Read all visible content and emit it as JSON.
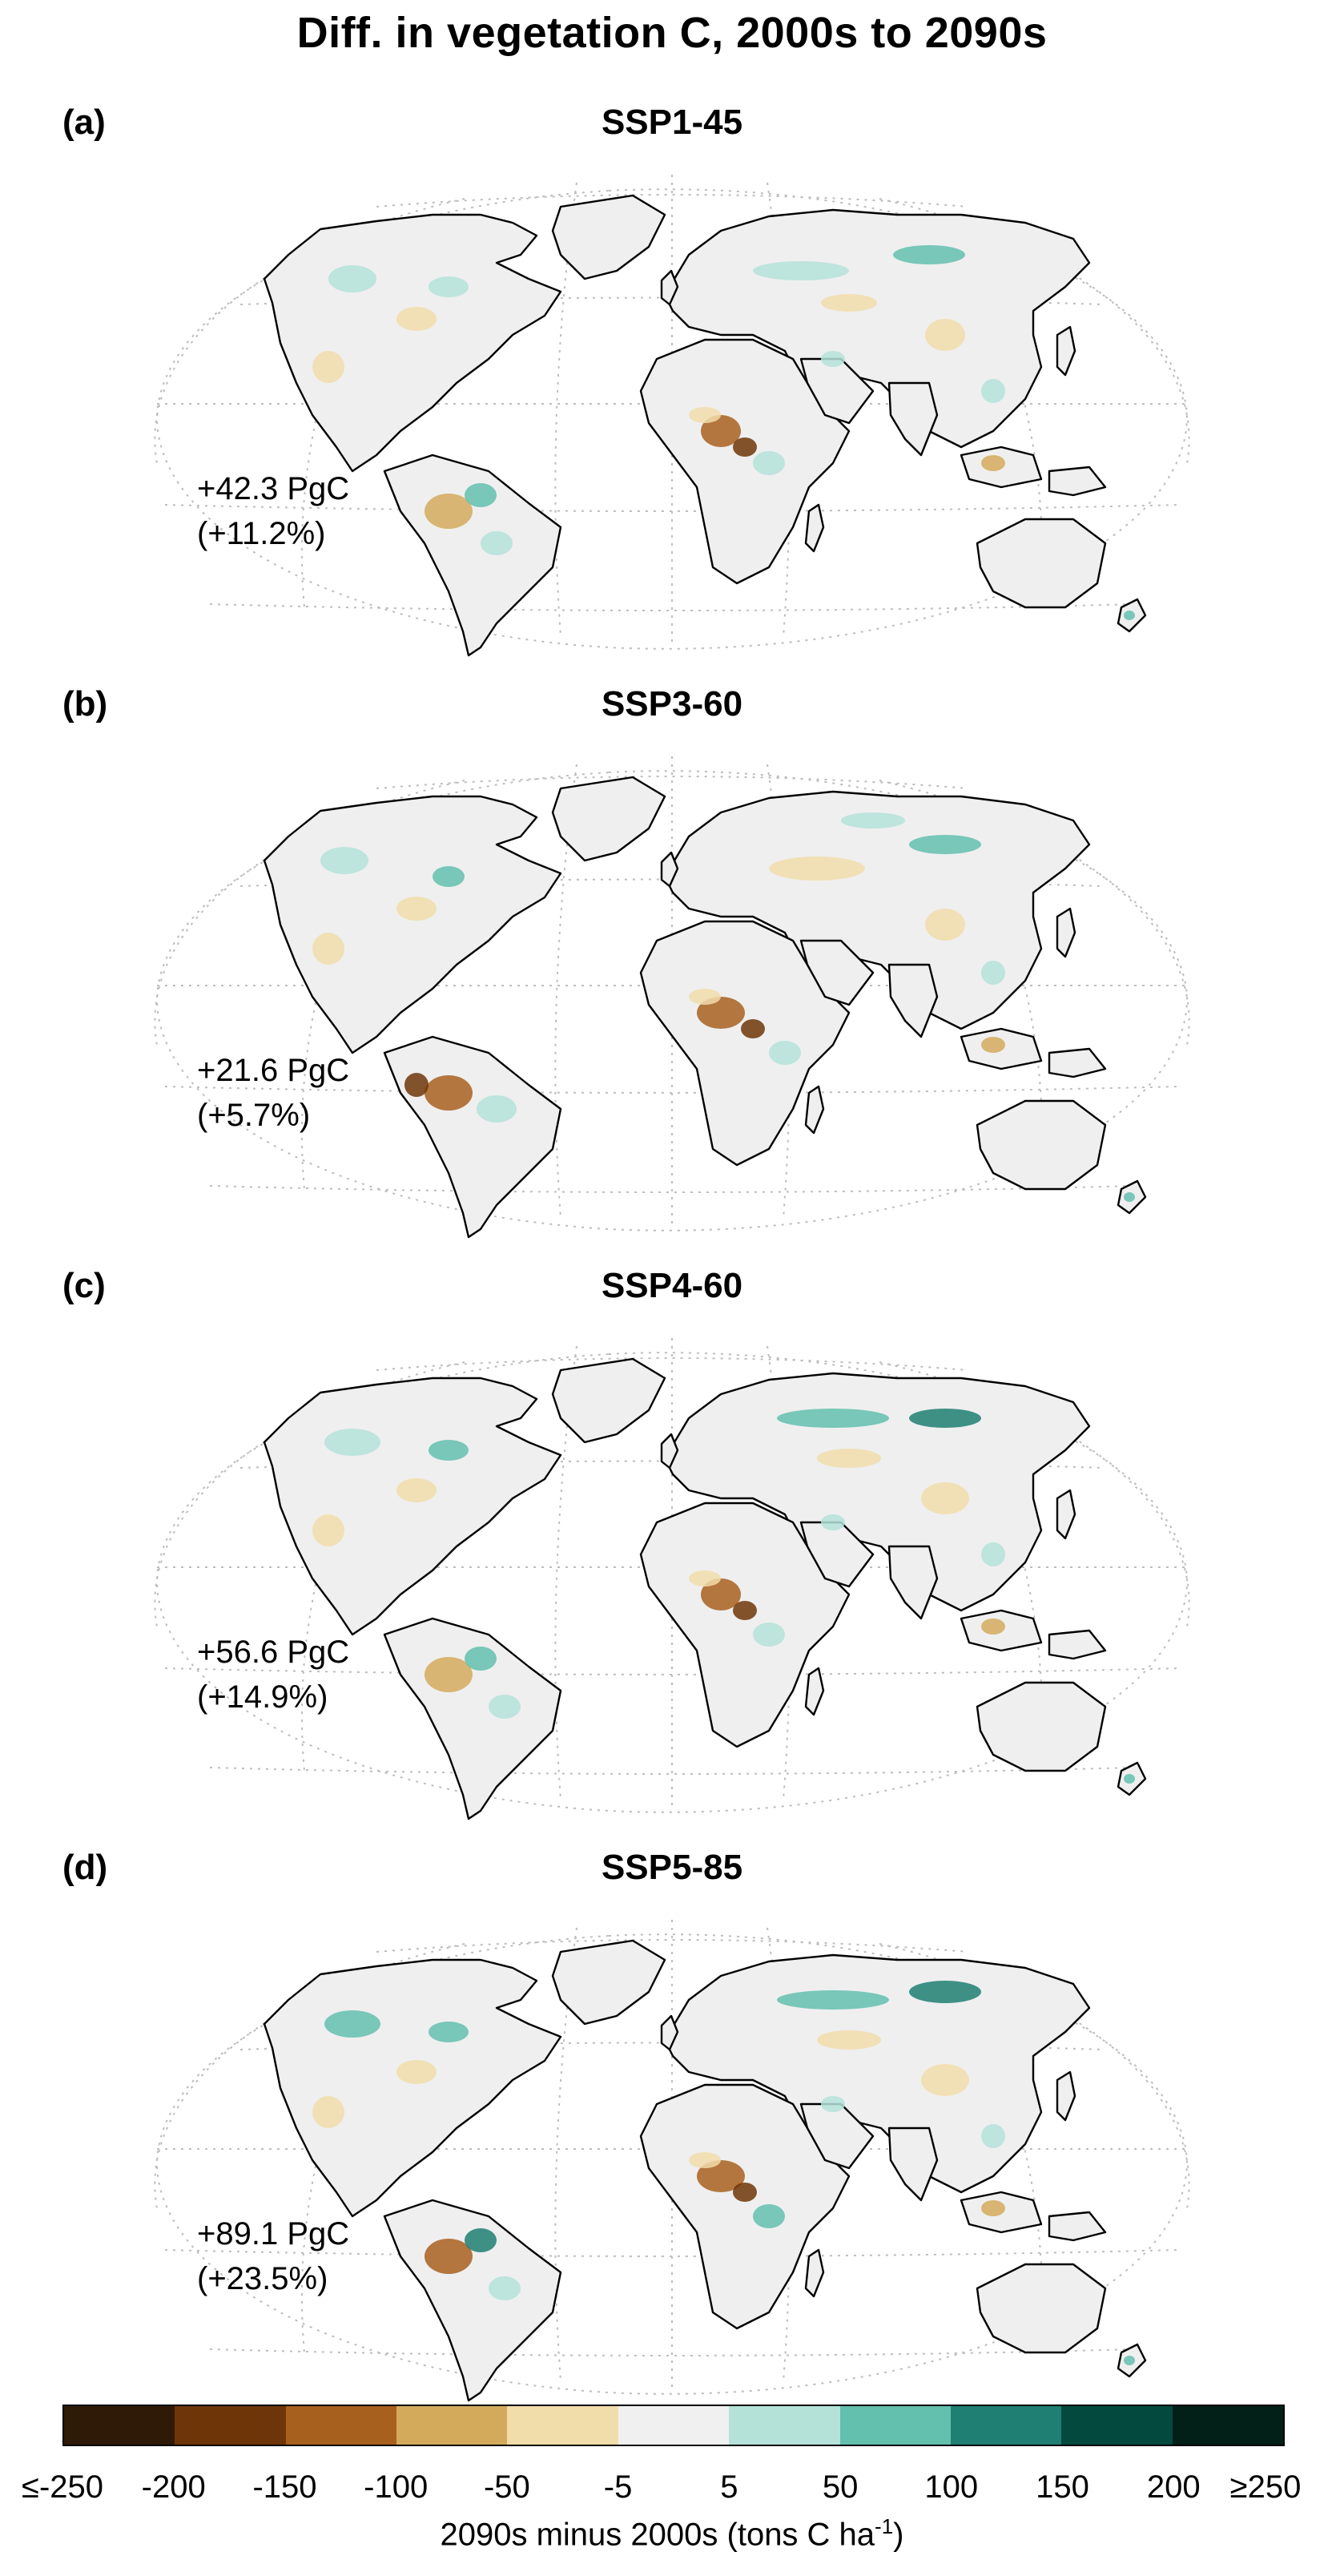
{
  "title": "Diff. in vegetation C, 2000s to 2090s",
  "panels": [
    {
      "letter": "(a)",
      "scenario": "SSP1-45",
      "total": "+42.3 PgC",
      "percent": "(+11.2%)"
    },
    {
      "letter": "(b)",
      "scenario": "SSP3-60",
      "total": "+21.6 PgC",
      "percent": "(+5.7%)"
    },
    {
      "letter": "(c)",
      "scenario": "SSP4-60",
      "total": "+56.6 PgC",
      "percent": "(+14.9%)"
    },
    {
      "letter": "(d)",
      "scenario": "SSP5-85",
      "total": "+89.1 PgC",
      "percent": "(+23.5%)"
    }
  ],
  "colorbar": {
    "colors": [
      "#2e1a07",
      "#6e3608",
      "#a8601f",
      "#d3aa5c",
      "#f1ddaa",
      "#f0f0f0",
      "#b4e2d9",
      "#63bfae",
      "#1f7f72",
      "#04493d",
      "#021f18"
    ],
    "ticks": [
      "≤-250",
      "-200",
      "-150",
      "-100",
      "-50",
      "-5",
      "5",
      "50",
      "100",
      "150",
      "200",
      "≥250"
    ],
    "label_main": "2090s minus 2000s (tons C ha",
    "label_exp": "-1",
    "label_close": ")"
  },
  "map_colors": {
    "land": "#efefef",
    "coast": "#000000",
    "graticule": "#bdbdbd"
  }
}
